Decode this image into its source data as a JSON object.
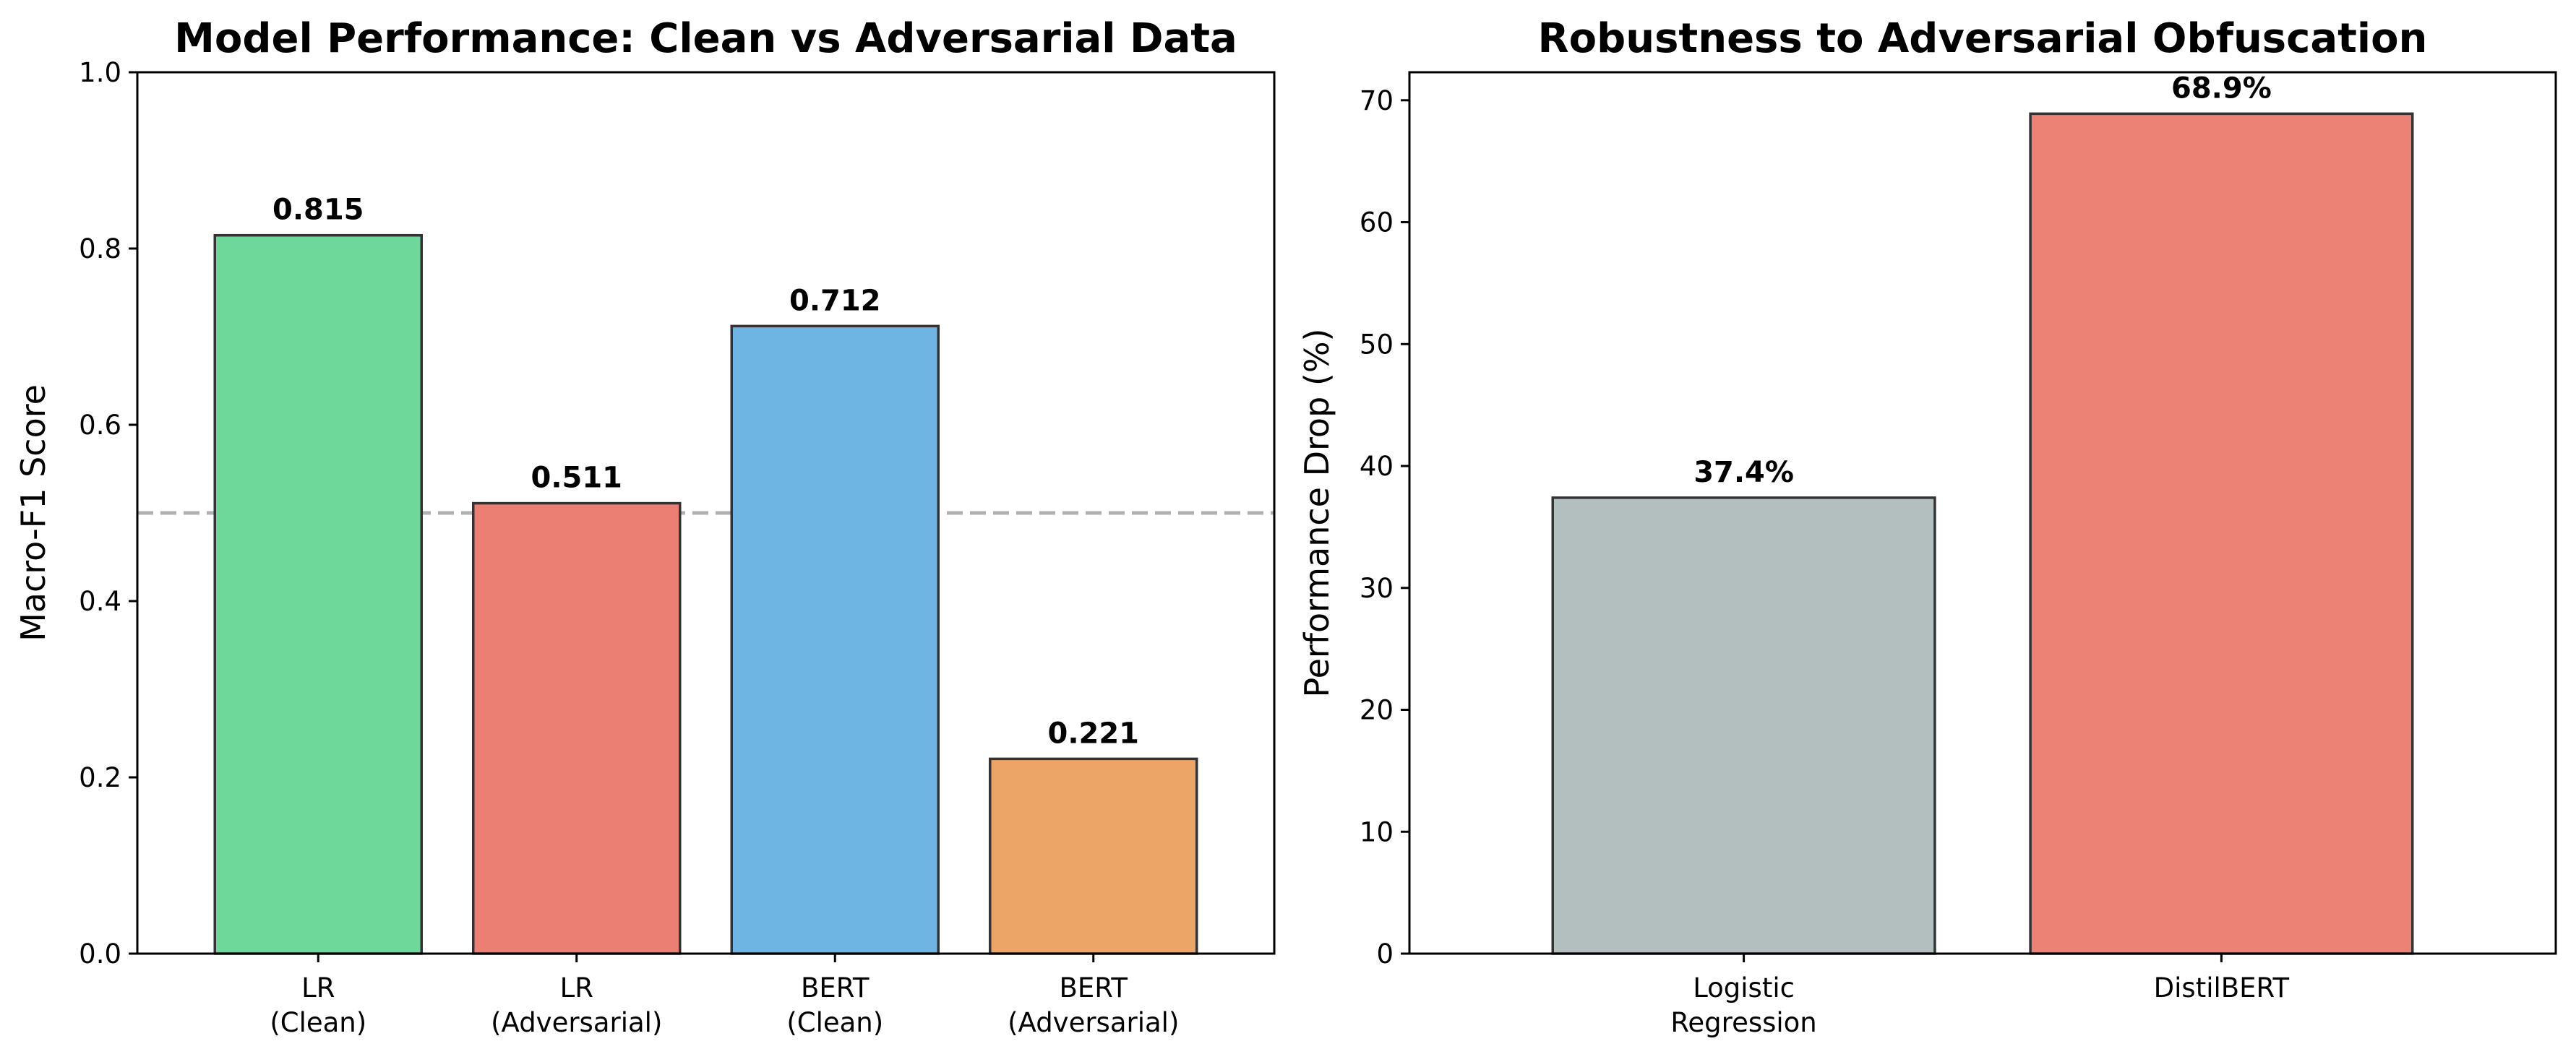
{
  "chart_data": [
    {
      "type": "bar",
      "title": "Model Performance: Clean vs Adversarial Data",
      "xlabel": "",
      "ylabel": "Macro-F1 Score",
      "categories": [
        [
          "LR",
          "(Clean)"
        ],
        [
          "LR",
          "(Adversarial)"
        ],
        [
          "BERT",
          "(Clean)"
        ],
        [
          "BERT",
          "(Adversarial)"
        ]
      ],
      "values": [
        0.815,
        0.511,
        0.712,
        0.221
      ],
      "value_labels": [
        "0.815",
        "0.511",
        "0.712",
        "0.221"
      ],
      "colors": [
        "#6dd899",
        "#ec7f74",
        "#6fb5e3",
        "#eca566"
      ],
      "ylim": [
        0,
        1.0
      ],
      "yticks": [
        0.0,
        0.2,
        0.4,
        0.6,
        0.8,
        1.0
      ],
      "ytick_labels": [
        "0.0",
        "0.2",
        "0.4",
        "0.6",
        "0.8",
        "1.0"
      ],
      "reference_line": {
        "y": 0.5,
        "style": "dashed",
        "color": "#b0b0b0"
      },
      "grid": false
    },
    {
      "type": "bar",
      "title": "Robustness to Adversarial Obfuscation",
      "xlabel": "",
      "ylabel": "Performance Drop (%)",
      "categories": [
        [
          "Logistic",
          "Regression"
        ],
        [
          "DistilBERT"
        ]
      ],
      "values": [
        37.4,
        68.9
      ],
      "value_labels": [
        "37.4%",
        "68.9%"
      ],
      "colors": [
        "#b3bfbf",
        "#ec8276"
      ],
      "ylim": [
        0,
        72.3
      ],
      "yticks": [
        0,
        10,
        20,
        30,
        40,
        50,
        60,
        70
      ],
      "ytick_labels": [
        "0",
        "10",
        "20",
        "30",
        "40",
        "50",
        "60",
        "70"
      ],
      "grid": false
    }
  ]
}
